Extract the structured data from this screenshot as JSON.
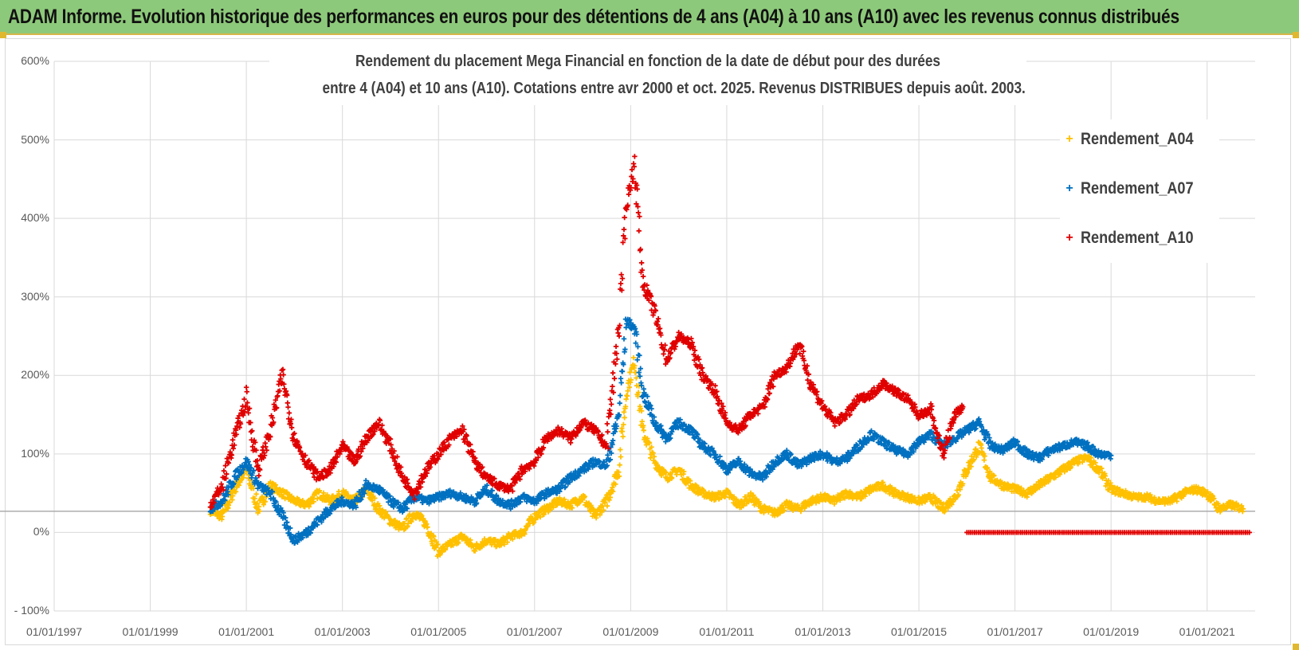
{
  "banner": {
    "text": "ADAM Informe. Evolution historique des performances en euros pour des détentions de 4 ans (A04) à 10 ans (A10) avec les revenus connus distribués"
  },
  "colors": {
    "banner_bg": "#8dc97a",
    "A04": "#ffc000",
    "A07": "#0070c0",
    "A10": "#e00000"
  },
  "chart_data": {
    "type": "scatter",
    "marker": "plus",
    "title_line1": "Rendement du placement Mega Financial  en fonction de la date de début pour des durées",
    "title_line2": "entre 4 (A04) et 10 ans (A10). Cotations entre avr 2000 et oct. 2025. Revenus DISTRIBUES depuis août. 2003.",
    "xlabel": "",
    "ylabel": "",
    "xlim": [
      "1997-01-01",
      "2022-01-01"
    ],
    "ylim": [
      -100,
      600
    ],
    "y_unit": "%",
    "grid": true,
    "legend_position": "right",
    "reference_line_y": 27,
    "x_ticks": [
      "01/01/1997",
      "01/01/1999",
      "01/01/2001",
      "01/01/2003",
      "01/01/2005",
      "01/01/2007",
      "01/01/2009",
      "01/01/2011",
      "01/01/2013",
      "01/01/2015",
      "01/01/2017",
      "01/01/2019",
      "01/01/2021"
    ],
    "y_ticks": [
      "- 100%",
      "0%",
      "100%",
      "200%",
      "300%",
      "400%",
      "500%",
      "600%"
    ],
    "series": [
      {
        "name": "Rendement_A04",
        "color": "#ffc000",
        "points": [
          [
            "2000-04",
            28
          ],
          [
            "2000-07",
            20
          ],
          [
            "2000-10",
            55
          ],
          [
            "2001-01",
            80
          ],
          [
            "2001-04",
            30
          ],
          [
            "2001-07",
            60
          ],
          [
            "2001-10",
            50
          ],
          [
            "2002-01",
            40
          ],
          [
            "2002-04",
            35
          ],
          [
            "2002-07",
            50
          ],
          [
            "2002-10",
            40
          ],
          [
            "2003-01",
            50
          ],
          [
            "2003-04",
            40
          ],
          [
            "2003-07",
            55
          ],
          [
            "2003-10",
            30
          ],
          [
            "2004-01",
            15
          ],
          [
            "2004-04",
            5
          ],
          [
            "2004-07",
            25
          ],
          [
            "2004-10",
            10
          ],
          [
            "2005-01",
            -25
          ],
          [
            "2005-04",
            -15
          ],
          [
            "2005-07",
            -5
          ],
          [
            "2005-10",
            -20
          ],
          [
            "2006-01",
            -10
          ],
          [
            "2006-04",
            -15
          ],
          [
            "2006-07",
            -5
          ],
          [
            "2006-10",
            0
          ],
          [
            "2007-01",
            20
          ],
          [
            "2007-04",
            30
          ],
          [
            "2007-07",
            40
          ],
          [
            "2007-10",
            35
          ],
          [
            "2008-01",
            45
          ],
          [
            "2008-04",
            20
          ],
          [
            "2008-07",
            40
          ],
          [
            "2008-10",
            80
          ],
          [
            "2008-12",
            180
          ],
          [
            "2009-02",
            220
          ],
          [
            "2009-04",
            130
          ],
          [
            "2009-07",
            90
          ],
          [
            "2009-10",
            70
          ],
          [
            "2010-01",
            80
          ],
          [
            "2010-04",
            60
          ],
          [
            "2010-07",
            50
          ],
          [
            "2010-10",
            45
          ],
          [
            "2011-01",
            50
          ],
          [
            "2011-04",
            35
          ],
          [
            "2011-07",
            45
          ],
          [
            "2011-10",
            30
          ],
          [
            "2012-01",
            25
          ],
          [
            "2012-04",
            35
          ],
          [
            "2012-07",
            30
          ],
          [
            "2012-10",
            40
          ],
          [
            "2013-01",
            45
          ],
          [
            "2013-04",
            40
          ],
          [
            "2013-07",
            50
          ],
          [
            "2013-10",
            45
          ],
          [
            "2014-01",
            55
          ],
          [
            "2014-04",
            60
          ],
          [
            "2014-07",
            50
          ],
          [
            "2014-10",
            45
          ],
          [
            "2015-01",
            40
          ],
          [
            "2015-04",
            45
          ],
          [
            "2015-07",
            30
          ],
          [
            "2015-10",
            45
          ],
          [
            "2016-01",
            80
          ],
          [
            "2016-04",
            110
          ],
          [
            "2016-07",
            70
          ],
          [
            "2016-10",
            60
          ],
          [
            "2017-01",
            55
          ],
          [
            "2017-04",
            50
          ],
          [
            "2017-07",
            60
          ],
          [
            "2017-10",
            70
          ],
          [
            "2018-01",
            80
          ],
          [
            "2018-04",
            90
          ],
          [
            "2018-07",
            95
          ],
          [
            "2018-10",
            80
          ],
          [
            "2019-01",
            55
          ],
          [
            "2019-04",
            50
          ],
          [
            "2019-07",
            45
          ],
          [
            "2019-10",
            45
          ],
          [
            "2020-01",
            40
          ],
          [
            "2020-04",
            40
          ],
          [
            "2020-07",
            50
          ],
          [
            "2020-10",
            55
          ],
          [
            "2021-01",
            50
          ],
          [
            "2021-04",
            30
          ],
          [
            "2021-07",
            35
          ],
          [
            "2021-10",
            30
          ]
        ]
      },
      {
        "name": "Rendement_A07",
        "color": "#0070c0",
        "points": [
          [
            "2000-04",
            30
          ],
          [
            "2000-07",
            40
          ],
          [
            "2000-10",
            70
          ],
          [
            "2001-01",
            90
          ],
          [
            "2001-04",
            60
          ],
          [
            "2001-07",
            50
          ],
          [
            "2001-10",
            20
          ],
          [
            "2002-01",
            -10
          ],
          [
            "2002-04",
            0
          ],
          [
            "2002-07",
            15
          ],
          [
            "2002-10",
            30
          ],
          [
            "2003-01",
            40
          ],
          [
            "2003-04",
            35
          ],
          [
            "2003-07",
            60
          ],
          [
            "2003-10",
            55
          ],
          [
            "2004-01",
            40
          ],
          [
            "2004-04",
            30
          ],
          [
            "2004-07",
            45
          ],
          [
            "2004-10",
            40
          ],
          [
            "2005-01",
            45
          ],
          [
            "2005-04",
            50
          ],
          [
            "2005-07",
            45
          ],
          [
            "2005-10",
            40
          ],
          [
            "2006-01",
            55
          ],
          [
            "2006-04",
            40
          ],
          [
            "2006-07",
            35
          ],
          [
            "2006-10",
            45
          ],
          [
            "2007-01",
            40
          ],
          [
            "2007-04",
            50
          ],
          [
            "2007-07",
            55
          ],
          [
            "2007-10",
            70
          ],
          [
            "2008-01",
            80
          ],
          [
            "2008-04",
            90
          ],
          [
            "2008-07",
            85
          ],
          [
            "2008-10",
            150
          ],
          [
            "2008-12",
            270
          ],
          [
            "2009-02",
            260
          ],
          [
            "2009-04",
            180
          ],
          [
            "2009-07",
            140
          ],
          [
            "2009-10",
            120
          ],
          [
            "2010-01",
            140
          ],
          [
            "2010-04",
            130
          ],
          [
            "2010-07",
            110
          ],
          [
            "2010-10",
            100
          ],
          [
            "2011-01",
            80
          ],
          [
            "2011-04",
            90
          ],
          [
            "2011-07",
            75
          ],
          [
            "2011-10",
            70
          ],
          [
            "2012-01",
            90
          ],
          [
            "2012-04",
            100
          ],
          [
            "2012-07",
            85
          ],
          [
            "2012-10",
            95
          ],
          [
            "2013-01",
            100
          ],
          [
            "2013-04",
            90
          ],
          [
            "2013-07",
            95
          ],
          [
            "2013-10",
            110
          ],
          [
            "2014-01",
            125
          ],
          [
            "2014-04",
            115
          ],
          [
            "2014-07",
            105
          ],
          [
            "2014-10",
            100
          ],
          [
            "2015-01",
            115
          ],
          [
            "2015-04",
            125
          ],
          [
            "2015-07",
            110
          ],
          [
            "2015-10",
            120
          ],
          [
            "2016-01",
            130
          ],
          [
            "2016-04",
            140
          ],
          [
            "2016-07",
            110
          ],
          [
            "2016-10",
            105
          ],
          [
            "2017-01",
            115
          ],
          [
            "2017-04",
            100
          ],
          [
            "2017-07",
            95
          ],
          [
            "2017-10",
            105
          ],
          [
            "2018-01",
            110
          ],
          [
            "2018-04",
            115
          ],
          [
            "2018-07",
            110
          ],
          [
            "2018-10",
            100
          ],
          [
            "2019-01",
            98
          ]
        ]
      },
      {
        "name": "Rendement_A10",
        "color": "#e00000",
        "points": [
          [
            "2000-04",
            35
          ],
          [
            "2000-07",
            60
          ],
          [
            "2000-10",
            120
          ],
          [
            "2001-01",
            170
          ],
          [
            "2001-04",
            80
          ],
          [
            "2001-07",
            130
          ],
          [
            "2001-10",
            200
          ],
          [
            "2002-01",
            120
          ],
          [
            "2002-04",
            90
          ],
          [
            "2002-07",
            70
          ],
          [
            "2002-10",
            80
          ],
          [
            "2003-01",
            110
          ],
          [
            "2003-04",
            90
          ],
          [
            "2003-07",
            120
          ],
          [
            "2003-10",
            140
          ],
          [
            "2004-01",
            110
          ],
          [
            "2004-04",
            70
          ],
          [
            "2004-07",
            50
          ],
          [
            "2004-10",
            80
          ],
          [
            "2005-01",
            100
          ],
          [
            "2005-04",
            120
          ],
          [
            "2005-07",
            130
          ],
          [
            "2005-10",
            90
          ],
          [
            "2006-01",
            70
          ],
          [
            "2006-04",
            60
          ],
          [
            "2006-07",
            55
          ],
          [
            "2006-10",
            80
          ],
          [
            "2007-01",
            90
          ],
          [
            "2007-04",
            120
          ],
          [
            "2007-07",
            130
          ],
          [
            "2007-10",
            120
          ],
          [
            "2008-01",
            140
          ],
          [
            "2008-04",
            130
          ],
          [
            "2008-07",
            110
          ],
          [
            "2008-10",
            260
          ],
          [
            "2008-12",
            420
          ],
          [
            "2009-02",
            470
          ],
          [
            "2009-04",
            320
          ],
          [
            "2009-07",
            280
          ],
          [
            "2009-10",
            220
          ],
          [
            "2010-01",
            250
          ],
          [
            "2010-04",
            240
          ],
          [
            "2010-07",
            200
          ],
          [
            "2010-10",
            180
          ],
          [
            "2011-01",
            140
          ],
          [
            "2011-04",
            130
          ],
          [
            "2011-07",
            150
          ],
          [
            "2011-10",
            160
          ],
          [
            "2012-01",
            200
          ],
          [
            "2012-04",
            210
          ],
          [
            "2012-07",
            240
          ],
          [
            "2012-10",
            190
          ],
          [
            "2013-01",
            160
          ],
          [
            "2013-04",
            140
          ],
          [
            "2013-07",
            150
          ],
          [
            "2013-10",
            170
          ],
          [
            "2014-01",
            175
          ],
          [
            "2014-04",
            190
          ],
          [
            "2014-07",
            180
          ],
          [
            "2014-10",
            170
          ],
          [
            "2015-01",
            150
          ],
          [
            "2015-04",
            155
          ],
          [
            "2015-07",
            100
          ],
          [
            "2015-10",
            150
          ],
          [
            "2015-12",
            160
          ]
        ],
        "flat_line": {
          "from": "2016-01",
          "to": "2021-12",
          "value": 0
        }
      }
    ]
  }
}
